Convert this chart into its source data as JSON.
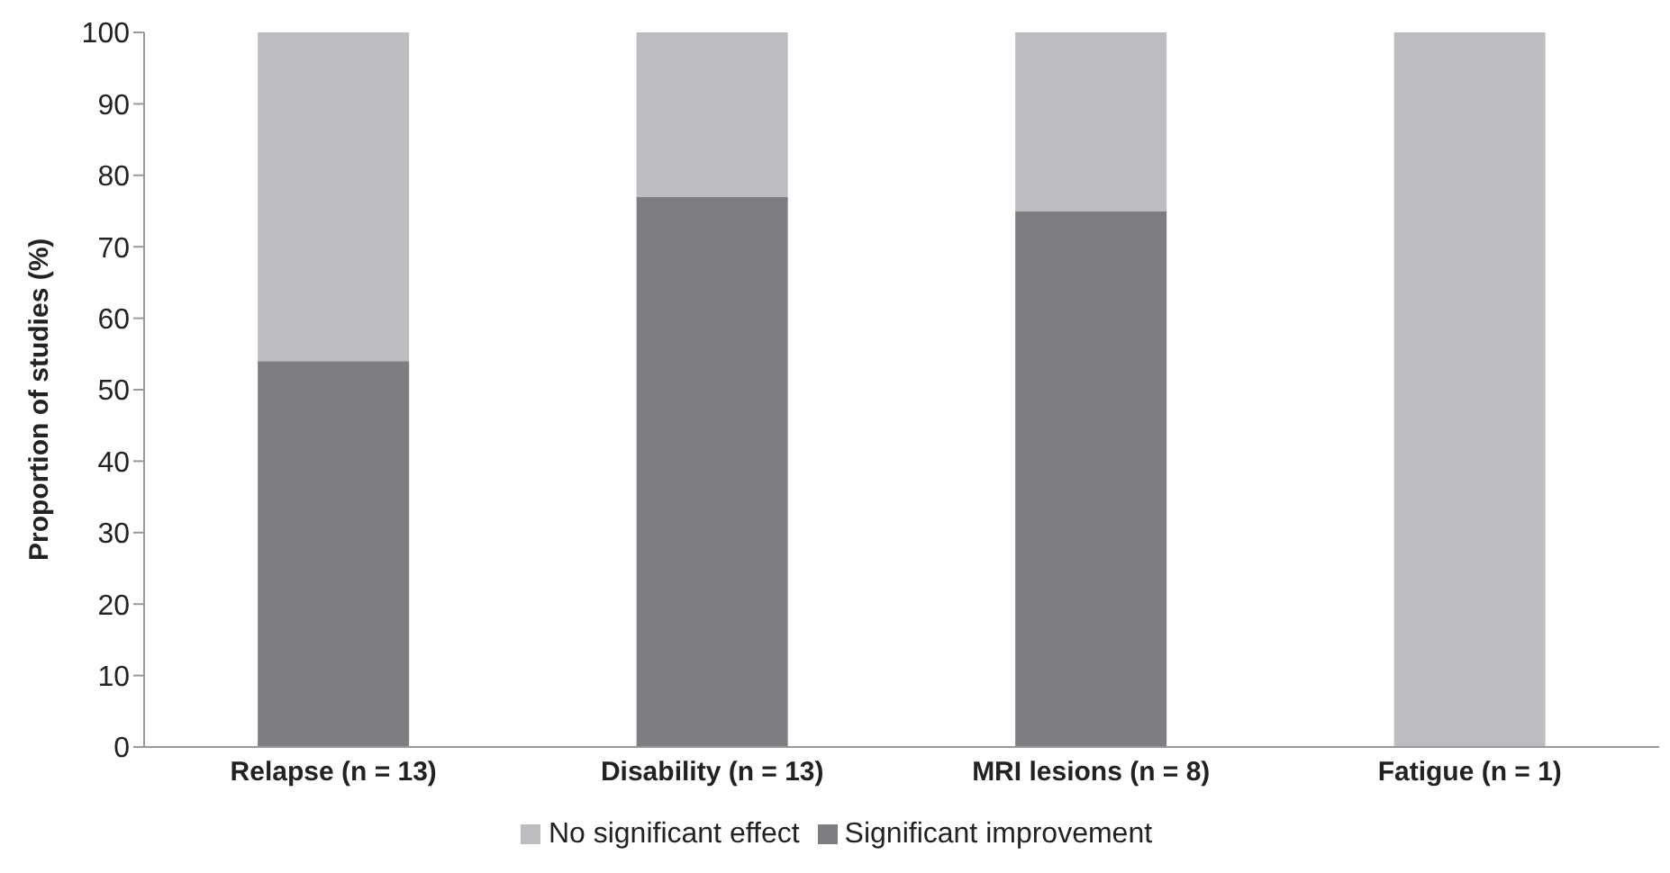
{
  "chart_data": {
    "type": "bar",
    "stacked": true,
    "ylabel": "Proportion of studies (%)",
    "categories": [
      "Relapse (n = 13)",
      "Disability (n = 13)",
      "MRI lesions (n = 8)",
      "Fatigue (n = 1)"
    ],
    "series": [
      {
        "name": "Significant improvement",
        "color": "#7d7e82",
        "values": [
          54,
          77,
          75,
          0
        ]
      },
      {
        "name": "No significant effect",
        "color": "#bcbdc0",
        "values": [
          46,
          23,
          25,
          100
        ]
      }
    ],
    "ylim": [
      0,
      100
    ],
    "yticks": [
      0,
      10,
      20,
      30,
      40,
      50,
      60,
      70,
      80,
      90,
      100
    ],
    "grid": false,
    "legend": "bottom"
  }
}
